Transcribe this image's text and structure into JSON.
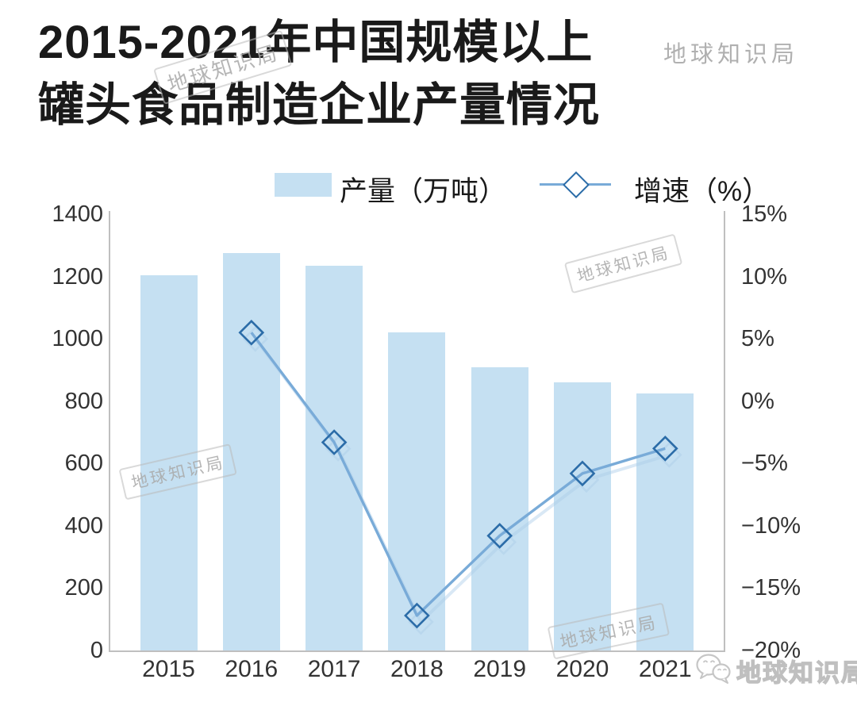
{
  "page": {
    "background": "#ffffff"
  },
  "title": {
    "line1": "2015-2021年中国规模以上",
    "line2": "罐头食品制造企业产量情况"
  },
  "brand": {
    "name": "地球知识局",
    "watermark_text": "地球知识局"
  },
  "legend": {
    "bar_label": "产量（万吨）",
    "line_label": "增速（%）"
  },
  "chart_data": {
    "type": "bar",
    "subtype": "bar+line-combo",
    "title": "2015-2021年中国规模以上罐头食品制造企业产量情况",
    "categories": [
      "2015",
      "2016",
      "2017",
      "2018",
      "2019",
      "2020",
      "2021"
    ],
    "series": [
      {
        "name": "产量（万吨）",
        "type": "bar",
        "axis": "left",
        "values": [
          1205,
          1275,
          1235,
          1020,
          910,
          860,
          825
        ]
      },
      {
        "name": "增速（%）",
        "type": "line",
        "axis": "right",
        "marker": "diamond",
        "values": [
          null,
          5.5,
          -3.3,
          -17.2,
          -10.8,
          -5.8,
          -3.8
        ]
      }
    ],
    "left_axis": {
      "min": 0,
      "max": 1400,
      "step": 200,
      "ticks": [
        "1400",
        "1200",
        "1000",
        "800",
        "600",
        "400",
        "200",
        "0"
      ]
    },
    "right_axis": {
      "min": -20,
      "max": 15,
      "step": 5,
      "ticks": [
        "15%",
        "10%",
        "5%",
        "0%",
        "−5%",
        "−10%",
        "−15%",
        "−20%"
      ]
    },
    "grid": false,
    "legend_position": "top"
  },
  "colors": {
    "bar_fill": "#C5E0F2",
    "line": "#79ABD8",
    "line_shadow": "#ACCDE9",
    "marker_stroke": "#2B6CA8",
    "axis_line": "#BFBFBF",
    "text_primary": "#1A1A1A",
    "tick_text": "#333333",
    "watermark_gray": "#B5B5B5"
  }
}
